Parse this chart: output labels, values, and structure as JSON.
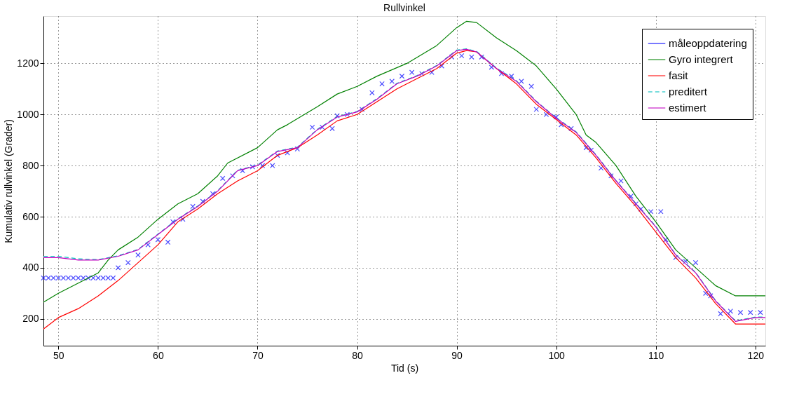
{
  "chart_data": {
    "type": "line",
    "title": "Rullvinkel",
    "xlabel": "Tid (s)",
    "ylabel": "Kumulativ rullvinkel (Grader)",
    "xlim": [
      48.5,
      121
    ],
    "ylim": [
      95,
      1385
    ],
    "xticks": [
      50,
      60,
      70,
      80,
      90,
      100,
      110,
      120
    ],
    "yticks": [
      200,
      400,
      600,
      800,
      1000,
      1200
    ],
    "grid": true,
    "legend": "top right",
    "series": [
      {
        "name": "måleoppdatering",
        "type": "scatter",
        "marker": "cross",
        "color": "#0000ff",
        "x": [
          48.5,
          49,
          49.5,
          50,
          50.5,
          51,
          51.5,
          52,
          52.5,
          53,
          53.5,
          54,
          54.5,
          55,
          55.5,
          56,
          57,
          58,
          59,
          60,
          61,
          61.5,
          62.5,
          63.5,
          64.5,
          65.5,
          66.5,
          67.5,
          68.5,
          69.5,
          70.5,
          71.5,
          72,
          73,
          74,
          75.5,
          76.5,
          77.5,
          78,
          79,
          80.5,
          81.5,
          82.5,
          83.5,
          84.5,
          85.5,
          86.5,
          87.5,
          88.5,
          89.5,
          90.5,
          91.5,
          92.5,
          93.5,
          94.5,
          95.5,
          96.5,
          97.5,
          98,
          99,
          100,
          100.5,
          101.5,
          103,
          103.5,
          104.5,
          105.5,
          106.5,
          107.5,
          108,
          108.5,
          109.5,
          110.5,
          111,
          112,
          113,
          114,
          115,
          115.5,
          116.5,
          117.5,
          118.5,
          119.5,
          120.5
        ],
        "values": [
          360,
          360,
          360,
          360,
          360,
          360,
          360,
          360,
          360,
          360,
          360,
          360,
          360,
          360,
          360,
          400,
          420,
          450,
          490,
          510,
          500,
          580,
          590,
          640,
          660,
          690,
          750,
          760,
          780,
          795,
          800,
          800,
          840,
          850,
          865,
          950,
          950,
          945,
          995,
          1000,
          1020,
          1085,
          1120,
          1130,
          1150,
          1165,
          1160,
          1165,
          1190,
          1225,
          1230,
          1225,
          1225,
          1185,
          1160,
          1150,
          1130,
          1110,
          1020,
          1000,
          990,
          960,
          945,
          870,
          860,
          790,
          760,
          740,
          680,
          650,
          630,
          620,
          620,
          510,
          440,
          425,
          420,
          300,
          290,
          220,
          230,
          225,
          225,
          225
        ]
      },
      {
        "name": "Gyro integrert",
        "color": "#008000",
        "x": [
          48.5,
          50,
          52,
          54,
          55,
          56,
          58,
          60,
          62,
          64,
          66,
          67,
          70,
          72,
          73,
          76,
          78,
          80,
          82,
          85,
          88,
          90,
          91,
          92,
          94,
          96,
          98,
          100,
          102,
          103,
          104,
          106,
          108,
          110,
          112,
          114,
          116,
          118,
          121
        ],
        "values": [
          265,
          300,
          340,
          380,
          430,
          470,
          520,
          590,
          650,
          690,
          760,
          810,
          870,
          940,
          960,
          1030,
          1080,
          1110,
          1150,
          1200,
          1270,
          1340,
          1365,
          1360,
          1300,
          1250,
          1190,
          1100,
          1000,
          920,
          890,
          800,
          680,
          580,
          470,
          400,
          330,
          290,
          290
        ]
      },
      {
        "name": "fasit",
        "color": "#ff0000",
        "x": [
          48.5,
          50,
          52,
          54,
          56,
          58,
          60,
          62,
          64,
          66,
          68,
          70,
          72,
          74,
          76,
          78,
          80,
          82,
          84,
          86,
          88,
          90,
          91,
          92,
          94,
          96,
          98,
          100,
          102,
          104,
          106,
          108,
          110,
          112,
          114,
          116,
          118,
          121
        ],
        "values": [
          160,
          205,
          240,
          290,
          350,
          420,
          490,
          580,
          630,
          690,
          740,
          780,
          840,
          870,
          920,
          975,
          1000,
          1050,
          1100,
          1140,
          1180,
          1240,
          1250,
          1245,
          1180,
          1120,
          1040,
          980,
          920,
          830,
          730,
          640,
          540,
          440,
          360,
          260,
          180,
          180
        ]
      },
      {
        "name": "preditert",
        "line_style": "dashed",
        "color": "#00bfbf",
        "x": [
          48.5,
          50,
          52,
          54,
          56,
          58,
          60,
          62,
          64,
          66,
          68,
          70,
          72,
          74,
          76,
          78,
          80,
          82,
          84,
          86,
          88,
          90,
          91,
          92,
          94,
          96,
          98,
          100,
          102,
          104,
          106,
          108,
          110,
          112,
          114,
          116,
          118,
          120,
          121
        ],
        "values": [
          445,
          445,
          435,
          432,
          447,
          472,
          532,
          592,
          642,
          702,
          782,
          802,
          857,
          872,
          942,
          992,
          1012,
          1062,
          1122,
          1152,
          1192,
          1252,
          1257,
          1247,
          1182,
          1132,
          1052,
          987,
          932,
          842,
          742,
          652,
          562,
          452,
          382,
          272,
          192,
          207,
          207
        ]
      },
      {
        "name": "estimert",
        "color": "#bf00bf",
        "x": [
          48.5,
          50,
          52,
          54,
          56,
          58,
          60,
          62,
          64,
          66,
          68,
          70,
          72,
          74,
          76,
          78,
          80,
          82,
          84,
          86,
          88,
          90,
          91,
          92,
          94,
          96,
          98,
          100,
          102,
          104,
          106,
          108,
          110,
          112,
          114,
          116,
          118,
          120,
          121
        ],
        "values": [
          440,
          440,
          430,
          430,
          445,
          470,
          530,
          590,
          640,
          700,
          780,
          800,
          855,
          870,
          940,
          990,
          1010,
          1060,
          1120,
          1150,
          1190,
          1250,
          1255,
          1245,
          1180,
          1130,
          1050,
          985,
          930,
          840,
          740,
          650,
          560,
          450,
          380,
          270,
          190,
          205,
          205
        ]
      }
    ]
  }
}
